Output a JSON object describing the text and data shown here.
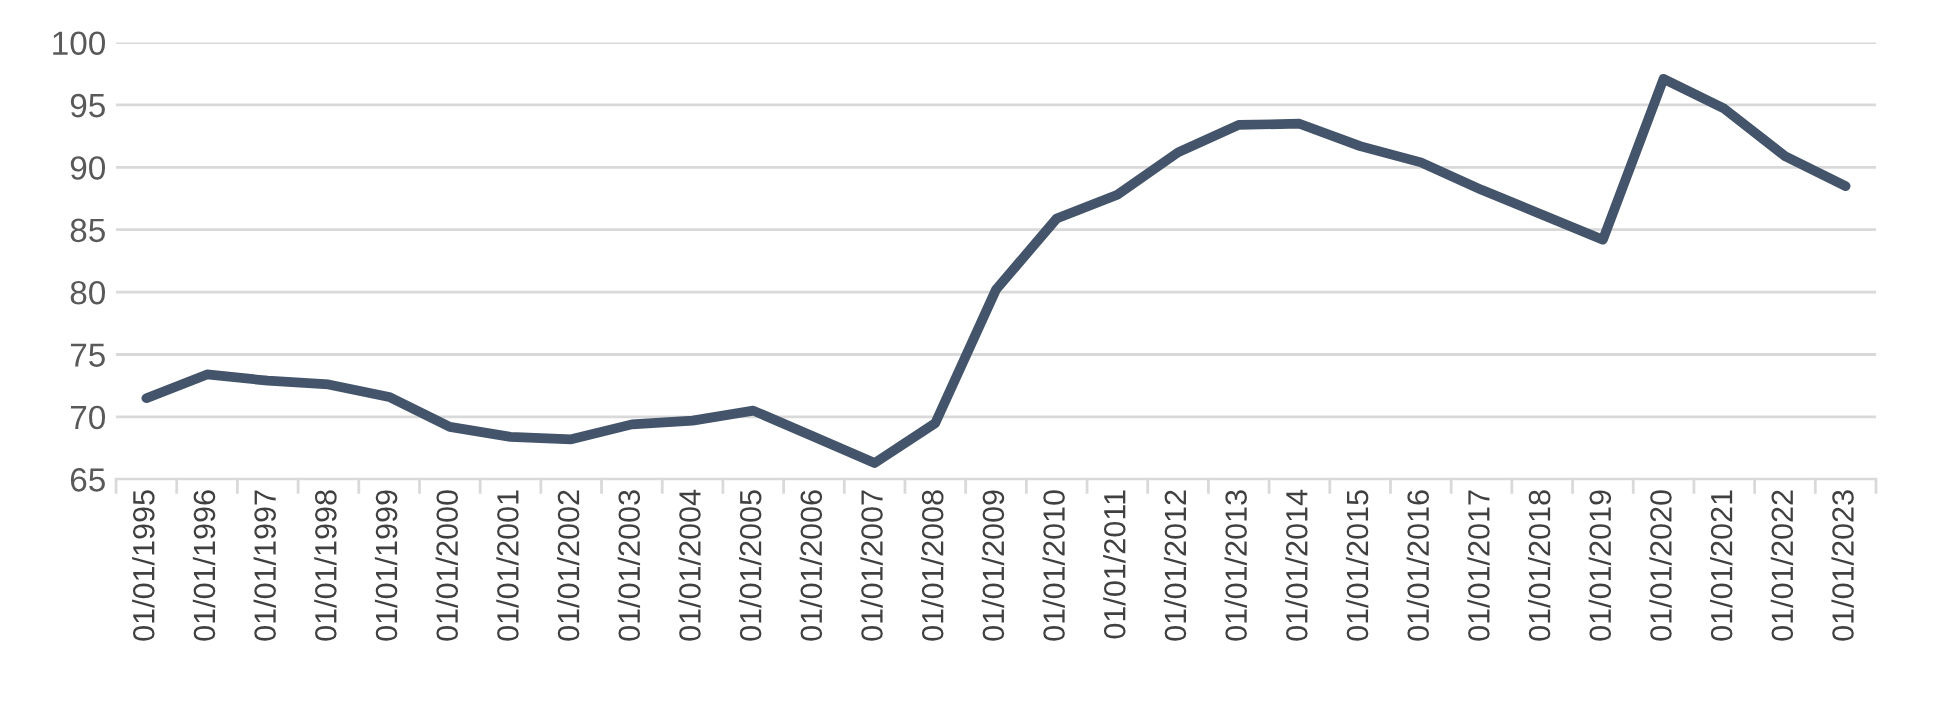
{
  "chart_data": {
    "type": "line",
    "categories": [
      "01/01/1995",
      "01/01/1996",
      "01/01/1997",
      "01/01/1998",
      "01/01/1999",
      "01/01/2000",
      "01/01/2001",
      "01/01/2002",
      "01/01/2003",
      "01/01/2004",
      "01/01/2005",
      "01/01/2006",
      "01/01/2007",
      "01/01/2008",
      "01/01/2009",
      "01/01/2010",
      "01/01/2011",
      "01/01/2012",
      "01/01/2013",
      "01/01/2014",
      "01/01/2015",
      "01/01/2016",
      "01/01/2017",
      "01/01/2018",
      "01/01/2019",
      "01/01/2020",
      "01/01/2021",
      "01/01/2022",
      "01/01/2023"
    ],
    "series": [
      {
        "color": "#44546a",
        "values": [
          71.5,
          73.4,
          72.9,
          72.6,
          71.6,
          69.2,
          68.4,
          68.2,
          69.4,
          69.7,
          70.5,
          68.4,
          66.3,
          69.5,
          80.2,
          85.9,
          87.8,
          91.2,
          93.4,
          93.5,
          91.7,
          90.4,
          88.2,
          86.2,
          84.2,
          97.1,
          94.7,
          90.9,
          88.5
        ]
      }
    ],
    "ylim": [
      65,
      100
    ],
    "yticks": [
      65,
      70,
      75,
      80,
      85,
      90,
      95,
      100
    ],
    "grid": "y",
    "marker": "none",
    "line_style": "solid"
  }
}
